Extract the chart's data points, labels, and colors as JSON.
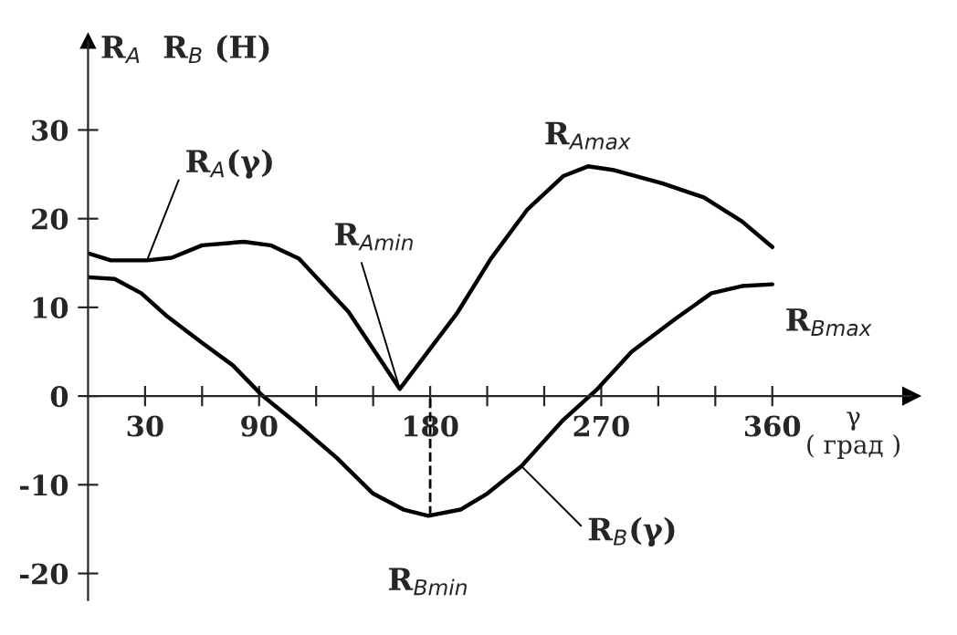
{
  "chart_data": {
    "type": "line",
    "ylabel": "R$_{A}$  R$_{B}$ (Н)",
    "xlabel": "γ\n( град )",
    "xlim": [
      0,
      433
    ],
    "ylim": [
      -23,
      40
    ],
    "xticks": [
      30,
      {
        "value": 60,
        "label": null
      },
      90,
      {
        "value": 120,
        "label": null
      },
      {
        "value": 150,
        "label": null
      },
      180,
      {
        "value": 210,
        "label": null
      },
      {
        "value": 240,
        "label": null
      },
      270,
      {
        "value": 300,
        "label": null
      },
      {
        "value": 330,
        "label": null
      },
      360
    ],
    "yticks": [
      -20,
      -10,
      0,
      10,
      20,
      30
    ],
    "grid": false,
    "marker": "none",
    "line_style": "solid",
    "series": [
      {
        "name": "R$_{A}$(γ)",
        "color": "#000000",
        "x": [
          0,
          12,
          31,
          44,
          60,
          82,
          96,
          111,
          137,
          164,
          194,
          212,
          231,
          250,
          263,
          276,
          302,
          324,
          344,
          360
        ],
        "values": [
          16.1,
          15.3,
          15.3,
          15.6,
          17,
          17.4,
          17,
          15.5,
          9.5,
          0.8,
          9.3,
          15.5,
          21,
          24.8,
          25.9,
          25.5,
          24,
          22.4,
          19.7,
          16.8
        ]
      },
      {
        "name": "R$_{B}$(γ)",
        "color": "#000000",
        "x": [
          0,
          14,
          28,
          41,
          60,
          76,
          91,
          111,
          131,
          150,
          166,
          179,
          196,
          210,
          228,
          250,
          268,
          286,
          309,
          328,
          344,
          360
        ],
        "values": [
          13.4,
          13.2,
          11.6,
          9.1,
          6.0,
          3.5,
          0.2,
          -3.3,
          -7,
          -11,
          -12.8,
          -13.5,
          -12.8,
          -11,
          -7.9,
          -2.7,
          0.8,
          5,
          8.7,
          11.6,
          12.4,
          12.6
        ]
      }
    ],
    "ref_lines": [
      {
        "axis": "x",
        "value": 180,
        "line_style": "dashed",
        "color": "#000000"
      }
    ],
    "annotations": [
      {
        "text": "R$_{Amin}$",
        "x": 164,
        "y": 0.8
      },
      {
        "text": "R$_{Amax}$",
        "x": 263,
        "y": 25.9
      },
      {
        "text": "R$_{Bmax}$",
        "x": 360,
        "y": 12.6
      },
      {
        "text": "R$_{Bmin}$",
        "x": 179,
        "y": -13.5
      }
    ]
  }
}
